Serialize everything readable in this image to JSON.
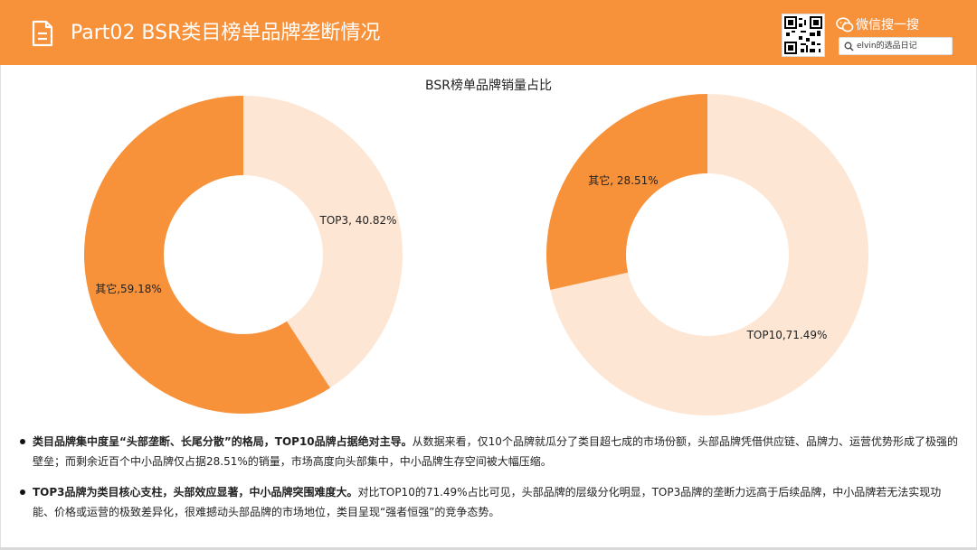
{
  "header": {
    "title": "Part02 BSR类目榜单品牌垄断情况",
    "wechat_label": "微信搜一搜",
    "search_text": "elvin的选品日记",
    "icons": [
      "document-icon",
      "qr-code-icon",
      "wechat-icon",
      "search-icon"
    ]
  },
  "colors": {
    "accent": "#f7923a",
    "light": "#fde6d4",
    "label": "#222222"
  },
  "chart_title": "BSR榜单品牌销量占比",
  "chart_data": [
    {
      "type": "pie",
      "variant": "donut",
      "slices": [
        {
          "label": "TOP3",
          "value": 40.82,
          "text": "TOP3, 40.82%"
        },
        {
          "label": "其它",
          "value": 59.18,
          "text": "其它,59.18%"
        }
      ]
    },
    {
      "type": "pie",
      "variant": "donut",
      "slices": [
        {
          "label": "TOP10",
          "value": 71.49,
          "text": "TOP10,71.49%"
        },
        {
          "label": "其它",
          "value": 28.51,
          "text": "其它, 28.51%"
        }
      ]
    }
  ],
  "bullets": [
    {
      "bold": "类目品牌集中度呈“头部垄断、长尾分散”的格局，TOP10品牌占据绝对主导。",
      "text": "从数据来看，仅10个品牌就瓜分了类目超七成的市场份额，头部品牌凭借供应链、品牌力、运营优势形成了极强的壁垒；而剩余近百个中小品牌仅占据28.51%的销量，市场高度向头部集中，中小品牌生存空间被大幅压缩。"
    },
    {
      "bold": "TOP3品牌为类目核心支柱，头部效应显著，中小品牌突围难度大。",
      "text": "对比TOP10的71.49%占比可见，头部品牌的层级分化明显，TOP3品牌的垄断力远高于后续品牌，中小品牌若无法实现功能、价格或运营的极致差异化，很难撼动头部品牌的市场地位，类目呈现“强者恒强”的竞争态势。"
    }
  ]
}
